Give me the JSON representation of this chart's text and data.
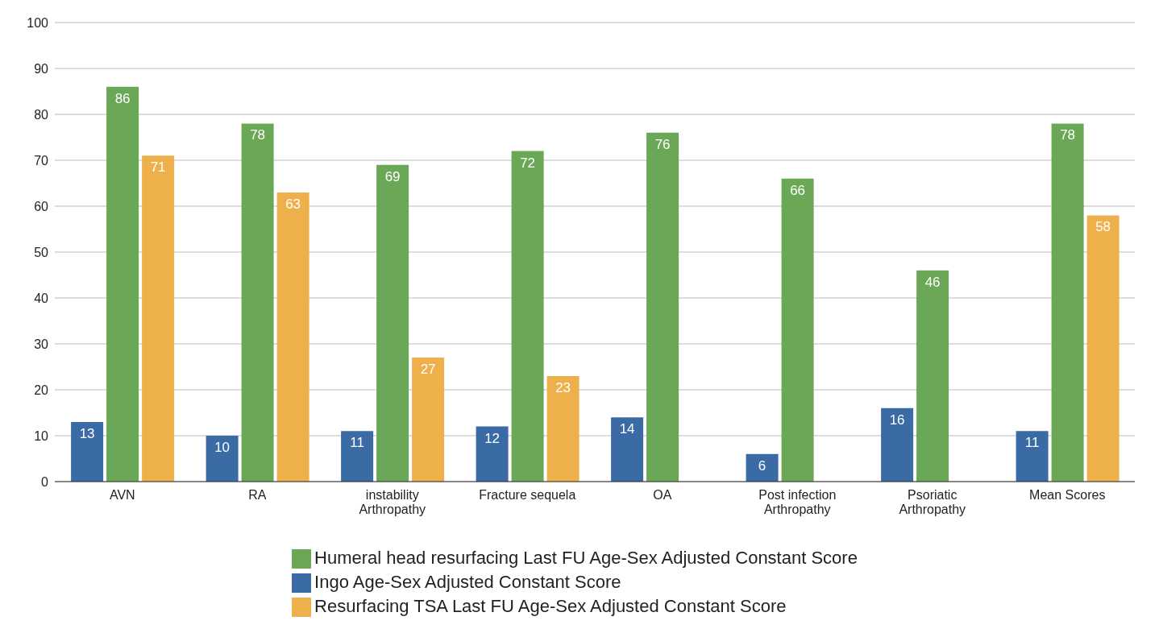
{
  "chart_data": {
    "type": "bar",
    "categories": [
      "AVN",
      "RA",
      "instability Arthropathy",
      "Fracture sequela",
      "OA",
      "Post infection Arthropathy",
      "Psoriatic Arthropathy",
      "Mean Scores"
    ],
    "series": [
      {
        "name": "Ingo Age-Sex Adjusted Constant Score",
        "color": "#3a6ba5",
        "values": [
          13,
          10,
          11,
          12,
          14,
          6,
          16,
          11
        ]
      },
      {
        "name": "Humeral head resurfacing Last FU Age-Sex Adjusted Constant Score",
        "color": "#6aa757",
        "values": [
          86,
          78,
          69,
          72,
          76,
          66,
          46,
          78
        ]
      },
      {
        "name": "Resurfacing TSA Last FU Age-Sex Adjusted Constant Score",
        "color": "#eeb04a",
        "values": [
          71,
          63,
          27,
          23,
          null,
          null,
          null,
          58
        ]
      }
    ],
    "ylim": [
      0,
      100
    ],
    "yticks": [
      0,
      10,
      20,
      30,
      40,
      50,
      60,
      70,
      80,
      90,
      100
    ],
    "grid": "y",
    "legend": "bottom",
    "data_labels": true
  }
}
